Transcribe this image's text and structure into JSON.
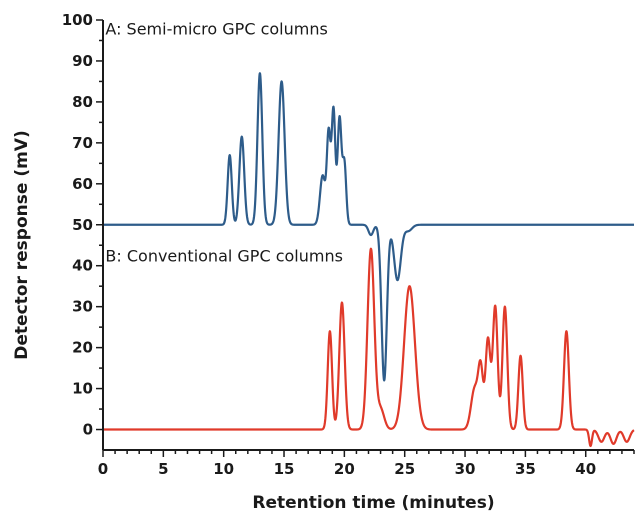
{
  "chart_data": {
    "type": "line",
    "title": "",
    "xlabel": "Retention time (minutes)",
    "ylabel": "Detector response (mV)",
    "xlim": [
      0,
      44
    ],
    "ylim": [
      -5,
      100
    ],
    "x_ticks": [
      0,
      5,
      10,
      15,
      20,
      25,
      30,
      35,
      40
    ],
    "y_ticks": [
      0,
      10,
      20,
      30,
      40,
      50,
      60,
      70,
      80,
      90,
      100
    ],
    "grid": false,
    "legend": "none",
    "annotations": [
      {
        "text": "A: Semi-micro GPC columns",
        "x": 0.2,
        "y": 96.5
      },
      {
        "text": "B: Conventional GPC columns",
        "x": 0.2,
        "y": 41
      }
    ],
    "series": [
      {
        "color": "#2e5c8a",
        "baseline": 50,
        "peaks": [
          {
            "t": 10.5,
            "h": 17,
            "w": 0.17
          },
          {
            "t": 11.5,
            "h": 21.5,
            "w": 0.2
          },
          {
            "t": 13.0,
            "h": 37,
            "w": 0.2
          },
          {
            "t": 14.8,
            "h": 35,
            "w": 0.25
          },
          {
            "t": 18.2,
            "h": 12,
            "w": 0.22
          },
          {
            "t": 18.7,
            "h": 22,
            "w": 0.15
          },
          {
            "t": 19.1,
            "h": 28,
            "w": 0.15
          },
          {
            "t": 19.6,
            "h": 26,
            "w": 0.16
          },
          {
            "t": 20.0,
            "h": 15,
            "w": 0.15
          },
          {
            "t": 22.2,
            "h": -2.5,
            "w": 0.2
          },
          {
            "t": 23.3,
            "h": -38,
            "w": 0.22
          },
          {
            "t": 24.4,
            "h": -13.5,
            "w": 0.28
          },
          {
            "t": 25.3,
            "h": -1.5,
            "w": 0.3
          }
        ]
      },
      {
        "color": "#e03a2a",
        "baseline": 0,
        "peaks": [
          {
            "t": 18.8,
            "h": 24,
            "w": 0.18
          },
          {
            "t": 19.8,
            "h": 31,
            "w": 0.22
          },
          {
            "t": 22.2,
            "h": 44,
            "w": 0.28
          },
          {
            "t": 23.0,
            "h": 5,
            "w": 0.3
          },
          {
            "t": 25.4,
            "h": 35,
            "w": 0.45
          },
          {
            "t": 30.8,
            "h": 10,
            "w": 0.3
          },
          {
            "t": 31.3,
            "h": 14,
            "w": 0.2
          },
          {
            "t": 31.9,
            "h": 22,
            "w": 0.2
          },
          {
            "t": 32.5,
            "h": 30,
            "w": 0.2
          },
          {
            "t": 33.3,
            "h": 30,
            "w": 0.2
          },
          {
            "t": 34.6,
            "h": 18,
            "w": 0.18
          },
          {
            "t": 38.4,
            "h": 24,
            "w": 0.2
          },
          {
            "t": 40.4,
            "h": -4,
            "w": 0.12
          },
          {
            "t": 41.3,
            "h": -3,
            "w": 0.25
          },
          {
            "t": 42.3,
            "h": -3.5,
            "w": 0.25
          },
          {
            "t": 43.4,
            "h": -3,
            "w": 0.25
          }
        ]
      }
    ]
  }
}
